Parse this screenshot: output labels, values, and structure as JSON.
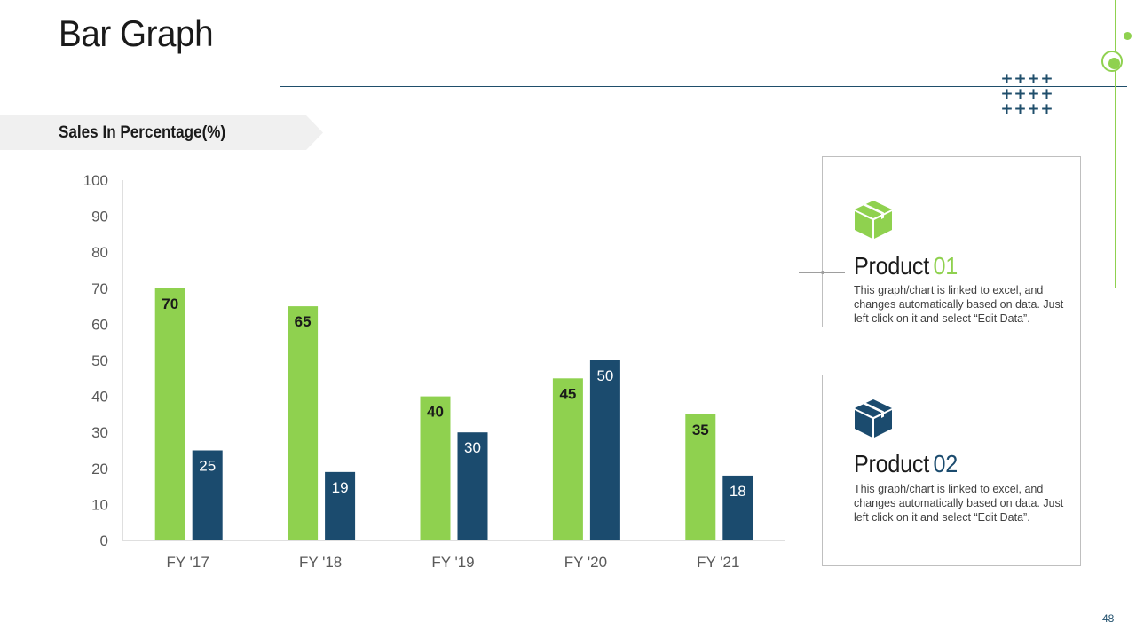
{
  "slide": {
    "title": "Bar Graph",
    "section_label": "Sales In Percentage(%)",
    "page_number": "48"
  },
  "colors": {
    "green": "#8fd14f",
    "navy": "#1b4b6e",
    "rule": "#1f4e6b",
    "axis_text": "#595959"
  },
  "decor": {
    "plus_symbol": "+"
  },
  "chart_data": {
    "type": "bar",
    "categories": [
      "FY '17",
      "FY '18",
      "FY '19",
      "FY '20",
      "FY '21"
    ],
    "series": [
      {
        "name": "Product 01",
        "color": "#8fd14f",
        "label_color": "#1a1a1a",
        "label_bold": true,
        "values": [
          70,
          65,
          40,
          45,
          35
        ]
      },
      {
        "name": "Product 02",
        "color": "#1b4b6e",
        "label_color": "#ffffff",
        "label_bold": false,
        "values": [
          25,
          19,
          30,
          50,
          18
        ]
      }
    ],
    "y_ticks": [
      0,
      10,
      20,
      30,
      40,
      50,
      60,
      70,
      80,
      90,
      100
    ],
    "ylim": [
      0,
      100
    ],
    "grid": false,
    "legend": "right"
  },
  "legend_cards": [
    {
      "icon": "package-icon",
      "color": "#8fd14f",
      "title_word": "Product",
      "title_number": "01",
      "description": "This graph/chart is linked to excel, and changes automatically based on data. Just left click on it and select “Edit Data”."
    },
    {
      "icon": "package-icon",
      "color": "#1b4b6e",
      "title_word": "Product",
      "title_number": "02",
      "description": "This graph/chart is linked to excel, and changes automatically based on data. Just left click on it and select “Edit Data”."
    }
  ]
}
